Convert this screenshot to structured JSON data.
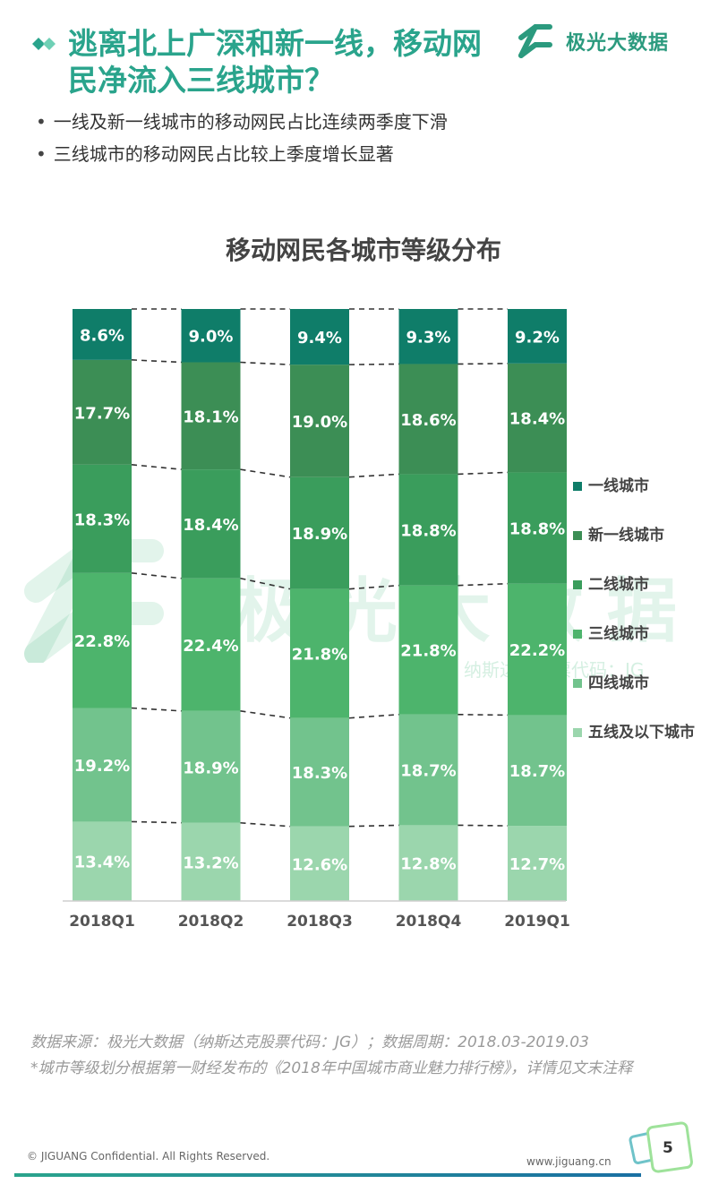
{
  "header": {
    "title": "逃离北上广深和新一线，移动网民净流入三线城市？",
    "logo_text": "极光大数据"
  },
  "bullets": [
    "一线及新一线城市的移动网民占比连续两季度下滑",
    "三线城市的移动网民占比较上季度增长显著"
  ],
  "watermark": {
    "text": "极光大数据",
    "sub": "纳斯达克股票代码：JG"
  },
  "chart_data": {
    "type": "bar",
    "stacked": true,
    "percent_stacked": true,
    "title": "移动网民各城市等级分布",
    "categories": [
      "2018Q1",
      "2018Q2",
      "2018Q3",
      "2018Q4",
      "2019Q1"
    ],
    "series": [
      {
        "name": "五线及以下城市",
        "color": "#9bd6ad",
        "values": [
          13.4,
          13.2,
          12.6,
          12.8,
          12.7
        ]
      },
      {
        "name": "四线城市",
        "color": "#72c38d",
        "values": [
          19.2,
          18.9,
          18.3,
          18.7,
          18.7
        ]
      },
      {
        "name": "三线城市",
        "color": "#4db46c",
        "values": [
          22.8,
          22.4,
          21.8,
          21.8,
          22.2
        ]
      },
      {
        "name": "二线城市",
        "color": "#3a9d5c",
        "values": [
          18.3,
          18.4,
          18.9,
          18.8,
          18.8
        ]
      },
      {
        "name": "新一线城市",
        "color": "#3c8e55",
        "values": [
          17.7,
          18.1,
          19.0,
          18.6,
          18.4
        ]
      },
      {
        "name": "一线城市",
        "color": "#0f7d69",
        "values": [
          8.6,
          9.0,
          9.4,
          9.3,
          9.2
        ]
      }
    ],
    "value_suffix": "%",
    "legend_position": "right",
    "grid": false
  },
  "legend_order": [
    "一线城市",
    "新一线城市",
    "二线城市",
    "三线城市",
    "四线城市",
    "五线及以下城市"
  ],
  "footer": {
    "source_line1": "数据来源：极光大数据（纳斯达克股票代码：JG）；数据周期：2018.03-2019.03",
    "source_line2": "*城市等级划分根据第一财经发布的《2018年中国城市商业魅力排行榜》，详情见文末注释",
    "copyright": "© JIGUANG Confidential. All Rights Reserved.",
    "site": "www.jiguang.cn",
    "page_number": "5"
  }
}
